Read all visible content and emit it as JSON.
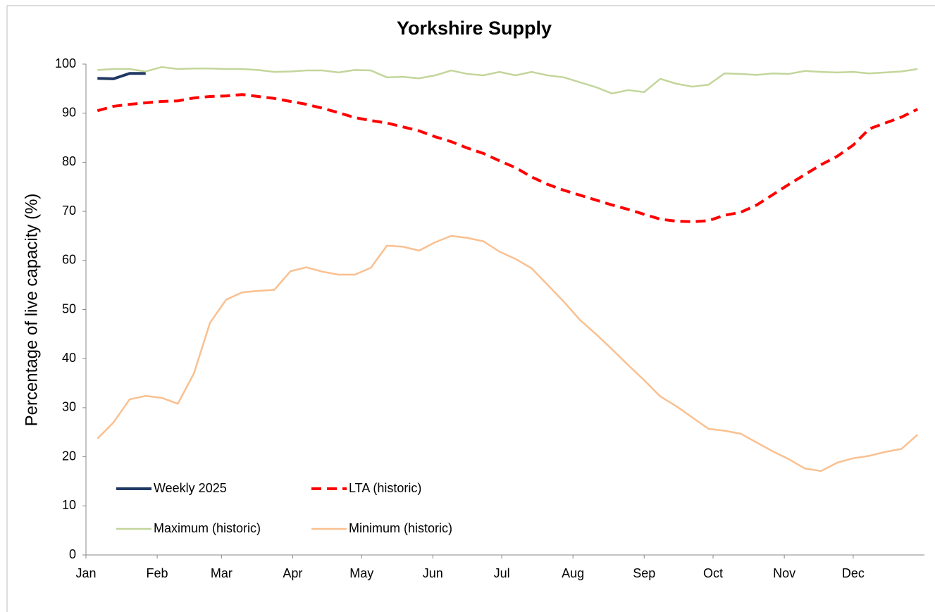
{
  "chart_data": {
    "type": "line",
    "title": "Yorkshire Supply",
    "y_label": "Percentage  of live capacity  (%)",
    "xlim": [
      0,
      365
    ],
    "xticks": [
      {
        "value": 0,
        "label": "Jan"
      },
      {
        "value": 31,
        "label": "Feb"
      },
      {
        "value": 59,
        "label": "Mar"
      },
      {
        "value": 90,
        "label": "Apr"
      },
      {
        "value": 120,
        "label": "May"
      },
      {
        "value": 151,
        "label": "Jun"
      },
      {
        "value": 181,
        "label": "Jul"
      },
      {
        "value": 212,
        "label": "Aug"
      },
      {
        "value": 243,
        "label": "Sep"
      },
      {
        "value": 273,
        "label": "Oct"
      },
      {
        "value": 304,
        "label": "Nov"
      },
      {
        "value": 334,
        "label": "Dec"
      }
    ],
    "ylim": [
      0,
      100
    ],
    "yticks": [
      0,
      10,
      20,
      30,
      40,
      50,
      60,
      70,
      80,
      90,
      100
    ],
    "grid": false,
    "legend": "bottom-left",
    "x": [
      5,
      12,
      19,
      26,
      33,
      40,
      47,
      54,
      61,
      68,
      75,
      82,
      89,
      96,
      103,
      110,
      117,
      124,
      131,
      138,
      145,
      152,
      159,
      166,
      173,
      180,
      187,
      194,
      201,
      208,
      215,
      222,
      229,
      236,
      243,
      250,
      257,
      264,
      271,
      278,
      285,
      292,
      299,
      306,
      313,
      320,
      327,
      334,
      341,
      348,
      355,
      362
    ],
    "series": [
      {
        "name": "Weekly 2025",
        "color": "#1f3864",
        "width": 4,
        "dashed": false,
        "values": [
          97.1,
          97,
          98.1,
          98.1,
          null,
          null,
          null,
          null,
          null,
          null,
          null,
          null,
          null,
          null,
          null,
          null,
          null,
          null,
          null,
          null,
          null,
          null,
          null,
          null,
          null,
          null,
          null,
          null,
          null,
          null,
          null,
          null,
          null,
          null,
          null,
          null,
          null,
          null,
          null,
          null,
          null,
          null,
          null,
          null,
          null,
          null,
          null,
          null,
          null,
          null,
          null,
          null
        ]
      },
      {
        "name": "LTA (historic)",
        "color": "#ff0000",
        "width": 4,
        "dashed": true,
        "values": [
          90.5,
          91.4,
          91.8,
          92.1,
          92.4,
          92.5,
          93.1,
          93.4,
          93.5,
          93.8,
          93.4,
          93,
          92.4,
          91.8,
          91,
          90.1,
          89.1,
          88.5,
          88,
          87.2,
          86.4,
          85.2,
          84.2,
          82.9,
          81.8,
          80.3,
          78.9,
          77,
          75.5,
          74.3,
          73.3,
          72.3,
          71.3,
          70.4,
          69.4,
          68.4,
          68,
          67.9,
          68.1,
          69.2,
          69.8,
          71.3,
          73.4,
          75.5,
          77.5,
          79.5,
          81.2,
          83.5,
          86.8,
          88,
          89.2,
          90.8
        ]
      },
      {
        "name": "Maximum (historic)",
        "color": "#c3d69b",
        "width": 2.5,
        "dashed": false,
        "values": [
          98.8,
          99,
          99,
          98.5,
          99.4,
          99,
          99.1,
          99.1,
          99,
          99,
          98.8,
          98.4,
          98.5,
          98.7,
          98.7,
          98.3,
          98.8,
          98.7,
          97.3,
          97.4,
          97.1,
          97.7,
          98.7,
          98,
          97.7,
          98.4,
          97.7,
          98.4,
          97.7,
          97.3,
          96.3,
          95.3,
          94,
          94.7,
          94.3,
          97,
          96,
          95.4,
          95.8,
          98.1,
          98,
          97.8,
          98.1,
          98,
          98.6,
          98.4,
          98.3,
          98.4,
          98.1,
          98.3,
          98.5,
          99
        ]
      },
      {
        "name": "Minimum (historic)",
        "color": "#fac090",
        "width": 2.5,
        "dashed": false,
        "values": [
          23.7,
          27,
          31.7,
          32.4,
          32,
          30.8,
          37,
          47.3,
          52,
          53.5,
          53.8,
          54,
          57.8,
          58.6,
          57.7,
          57.1,
          57.1,
          58.5,
          63,
          62.8,
          62,
          63.7,
          65,
          64.6,
          63.9,
          61.8,
          60.3,
          58.4,
          55,
          51.6,
          47.9,
          45,
          41.9,
          38.7,
          35.6,
          32.3,
          30.3,
          28,
          25.7,
          25.3,
          24.7,
          22.9,
          21.1,
          19.5,
          17.6,
          17.1,
          18.8,
          19.7,
          20.2,
          21,
          21.6,
          24.5
        ]
      }
    ]
  }
}
